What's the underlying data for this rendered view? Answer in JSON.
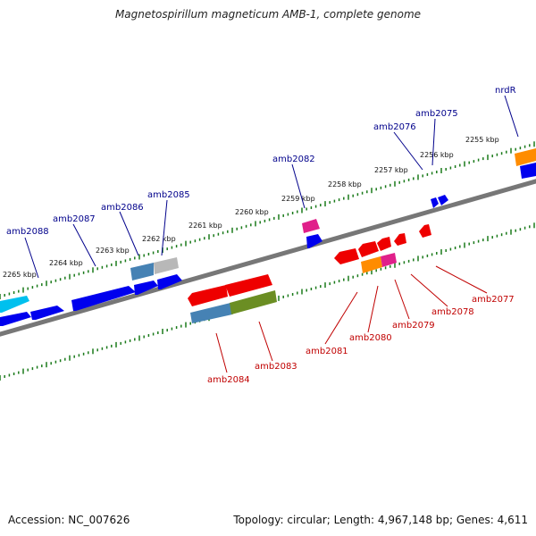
{
  "title": "Magnetospirillum magneticum AMB-1, complete genome",
  "footer": {
    "accession": "Accession: NC_007626",
    "topology": "Topology: circular; Length: 4,967,148 bp; Genes: 4,611"
  },
  "colors": {
    "top_labels": "#00008b",
    "bottom_labels": "#c00000",
    "tick_marks": "#1a7a1a",
    "backbone": "#808080"
  },
  "ticks": [
    {
      "label": "2265 kbp",
      "kbp": 2265
    },
    {
      "label": "2264 kbp",
      "kbp": 2264
    },
    {
      "label": "2263 kbp",
      "kbp": 2263
    },
    {
      "label": "2262 kbp",
      "kbp": 2262
    },
    {
      "label": "2261 kbp",
      "kbp": 2261
    },
    {
      "label": "2260 kbp",
      "kbp": 2260
    },
    {
      "label": "2259 kbp",
      "kbp": 2259
    },
    {
      "label": "2258 kbp",
      "kbp": 2258
    },
    {
      "label": "2257 kbp",
      "kbp": 2257
    },
    {
      "label": "2256 kbp",
      "kbp": 2256
    },
    {
      "label": "2255 kbp",
      "kbp": 2255
    }
  ],
  "top_gene_labels": [
    "amb2088",
    "amb2087",
    "amb2086",
    "amb2085",
    "amb2082",
    "amb2076",
    "amb2075",
    "nrdR"
  ],
  "bottom_gene_labels": [
    "amb2084",
    "amb2083",
    "amb2081",
    "amb2080",
    "amb2079",
    "amb2078",
    "amb2077"
  ],
  "gene_colors": {
    "blue": "#0000ee",
    "cyan": "#00c0ee",
    "steel": "#4682b4",
    "grey": "#b8b8b8",
    "magenta": "#e0208a",
    "red": "#ee0000",
    "orange": "#ff8c00",
    "olive": "#6b8e23"
  }
}
